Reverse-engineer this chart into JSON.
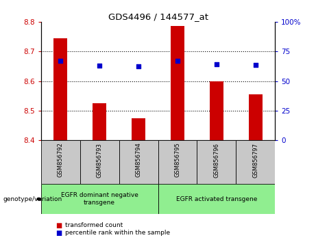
{
  "title": "GDS4496 / 144577_at",
  "samples": [
    "GSM856792",
    "GSM856793",
    "GSM856794",
    "GSM856795",
    "GSM856796",
    "GSM856797"
  ],
  "bar_values": [
    8.745,
    8.525,
    8.475,
    8.785,
    8.6,
    8.555
  ],
  "percentile_values": [
    67,
    63,
    62.5,
    67,
    64,
    63.5
  ],
  "ylim_left": [
    8.4,
    8.8
  ],
  "ylim_right": [
    0,
    100
  ],
  "yticks_left": [
    8.4,
    8.5,
    8.6,
    8.7,
    8.8
  ],
  "yticks_right": [
    0,
    25,
    50,
    75,
    100
  ],
  "bar_color": "#cc0000",
  "dot_color": "#0000cc",
  "bar_bottom": 8.4,
  "groups": [
    {
      "label": "EGFR dominant negative\ntransgene",
      "color": "#90ee90"
    },
    {
      "label": "EGFR activated transgene",
      "color": "#90ee90"
    }
  ],
  "group_label": "genotype/variation",
  "legend_items": [
    {
      "color": "#cc0000",
      "label": "transformed count"
    },
    {
      "color": "#0000cc",
      "label": "percentile rank within the sample"
    }
  ],
  "bg_color_sample_row": "#c8c8c8",
  "tick_label_color_left": "#cc0000",
  "tick_label_color_right": "#0000cc"
}
